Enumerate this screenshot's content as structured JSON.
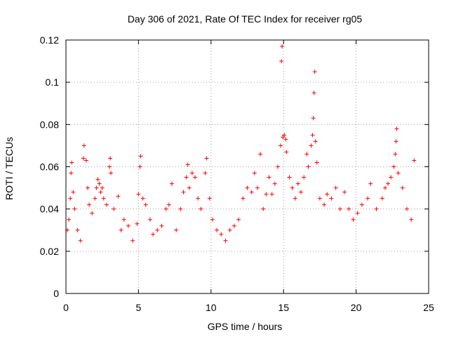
{
  "chart_data": {
    "type": "scatter",
    "title": "Day 306 of 2021, Rate Of TEC Index for receiver rg05",
    "xlabel": "GPS time / hours",
    "ylabel": "ROTI / TECUs",
    "xlim": [
      0,
      25
    ],
    "ylim": [
      0,
      0.12
    ],
    "grid": true,
    "marker": "+",
    "color": "#ff0000",
    "xticks": [
      0,
      5,
      10,
      15,
      20,
      25
    ],
    "xtick_labels": [
      "0",
      "5",
      "10",
      "15",
      "20",
      "25"
    ],
    "yticks": [
      0,
      0.02,
      0.04,
      0.06,
      0.08,
      0.1,
      0.12
    ],
    "ytick_labels": [
      "0",
      "0.02",
      "0.04",
      "0.06",
      "0.08",
      "0.1",
      "0.12"
    ],
    "series": [
      {
        "name": "ROTI",
        "points": [
          [
            0.1,
            0.03
          ],
          [
            0.2,
            0.035
          ],
          [
            0.3,
            0.045
          ],
          [
            0.35,
            0.057
          ],
          [
            0.4,
            0.062
          ],
          [
            0.5,
            0.048
          ],
          [
            0.6,
            0.04
          ],
          [
            0.8,
            0.03
          ],
          [
            1.0,
            0.025
          ],
          [
            1.2,
            0.064
          ],
          [
            1.25,
            0.07
          ],
          [
            1.4,
            0.063
          ],
          [
            1.5,
            0.05
          ],
          [
            1.6,
            0.042
          ],
          [
            1.8,
            0.038
          ],
          [
            2.0,
            0.045
          ],
          [
            2.1,
            0.05
          ],
          [
            2.2,
            0.054
          ],
          [
            2.3,
            0.052
          ],
          [
            2.4,
            0.048
          ],
          [
            2.5,
            0.05
          ],
          [
            2.6,
            0.045
          ],
          [
            2.8,
            0.042
          ],
          [
            3.0,
            0.06
          ],
          [
            3.05,
            0.064
          ],
          [
            3.1,
            0.057
          ],
          [
            3.3,
            0.04
          ],
          [
            3.6,
            0.046
          ],
          [
            3.8,
            0.03
          ],
          [
            4.0,
            0.035
          ],
          [
            4.3,
            0.032
          ],
          [
            4.6,
            0.025
          ],
          [
            4.9,
            0.033
          ],
          [
            5.0,
            0.047
          ],
          [
            5.1,
            0.06
          ],
          [
            5.15,
            0.065
          ],
          [
            5.3,
            0.045
          ],
          [
            5.5,
            0.042
          ],
          [
            5.8,
            0.035
          ],
          [
            6.0,
            0.028
          ],
          [
            6.3,
            0.03
          ],
          [
            6.6,
            0.032
          ],
          [
            6.9,
            0.04
          ],
          [
            7.1,
            0.042
          ],
          [
            7.3,
            0.052
          ],
          [
            7.6,
            0.03
          ],
          [
            7.9,
            0.04
          ],
          [
            8.1,
            0.048
          ],
          [
            8.3,
            0.055
          ],
          [
            8.4,
            0.061
          ],
          [
            8.5,
            0.05
          ],
          [
            8.7,
            0.057
          ],
          [
            8.9,
            0.055
          ],
          [
            9.1,
            0.045
          ],
          [
            9.3,
            0.04
          ],
          [
            9.6,
            0.057
          ],
          [
            9.7,
            0.064
          ],
          [
            9.9,
            0.045
          ],
          [
            10.1,
            0.035
          ],
          [
            10.4,
            0.03
          ],
          [
            10.7,
            0.028
          ],
          [
            11.0,
            0.025
          ],
          [
            11.3,
            0.03
          ],
          [
            11.6,
            0.032
          ],
          [
            11.9,
            0.035
          ],
          [
            12.2,
            0.045
          ],
          [
            12.5,
            0.05
          ],
          [
            12.8,
            0.048
          ],
          [
            13.0,
            0.057
          ],
          [
            13.2,
            0.05
          ],
          [
            13.4,
            0.066
          ],
          [
            13.6,
            0.04
          ],
          [
            13.8,
            0.047
          ],
          [
            14.0,
            0.055
          ],
          [
            14.2,
            0.047
          ],
          [
            14.4,
            0.052
          ],
          [
            14.6,
            0.06
          ],
          [
            14.8,
            0.07
          ],
          [
            14.85,
            0.11
          ],
          [
            14.9,
            0.117
          ],
          [
            14.95,
            0.074
          ],
          [
            15.05,
            0.075
          ],
          [
            15.15,
            0.073
          ],
          [
            15.2,
            0.067
          ],
          [
            15.4,
            0.055
          ],
          [
            15.6,
            0.05
          ],
          [
            15.8,
            0.045
          ],
          [
            16.0,
            0.052
          ],
          [
            16.2,
            0.048
          ],
          [
            16.4,
            0.055
          ],
          [
            16.6,
            0.066
          ],
          [
            16.7,
            0.06
          ],
          [
            16.9,
            0.07
          ],
          [
            17.0,
            0.075
          ],
          [
            17.05,
            0.083
          ],
          [
            17.1,
            0.095
          ],
          [
            17.15,
            0.105
          ],
          [
            17.2,
            0.072
          ],
          [
            17.3,
            0.062
          ],
          [
            17.5,
            0.045
          ],
          [
            17.8,
            0.042
          ],
          [
            18.0,
            0.047
          ],
          [
            18.3,
            0.045
          ],
          [
            18.6,
            0.05
          ],
          [
            18.9,
            0.04
          ],
          [
            19.2,
            0.048
          ],
          [
            19.5,
            0.04
          ],
          [
            19.8,
            0.035
          ],
          [
            20.1,
            0.038
          ],
          [
            20.4,
            0.042
          ],
          [
            20.8,
            0.045
          ],
          [
            21.0,
            0.052
          ],
          [
            21.4,
            0.04
          ],
          [
            21.8,
            0.045
          ],
          [
            22.0,
            0.05
          ],
          [
            22.2,
            0.052
          ],
          [
            22.4,
            0.055
          ],
          [
            22.6,
            0.06
          ],
          [
            22.7,
            0.066
          ],
          [
            22.75,
            0.072
          ],
          [
            22.8,
            0.078
          ],
          [
            22.9,
            0.057
          ],
          [
            23.2,
            0.05
          ],
          [
            23.5,
            0.04
          ],
          [
            23.8,
            0.035
          ],
          [
            24.0,
            0.063
          ]
        ]
      }
    ]
  }
}
